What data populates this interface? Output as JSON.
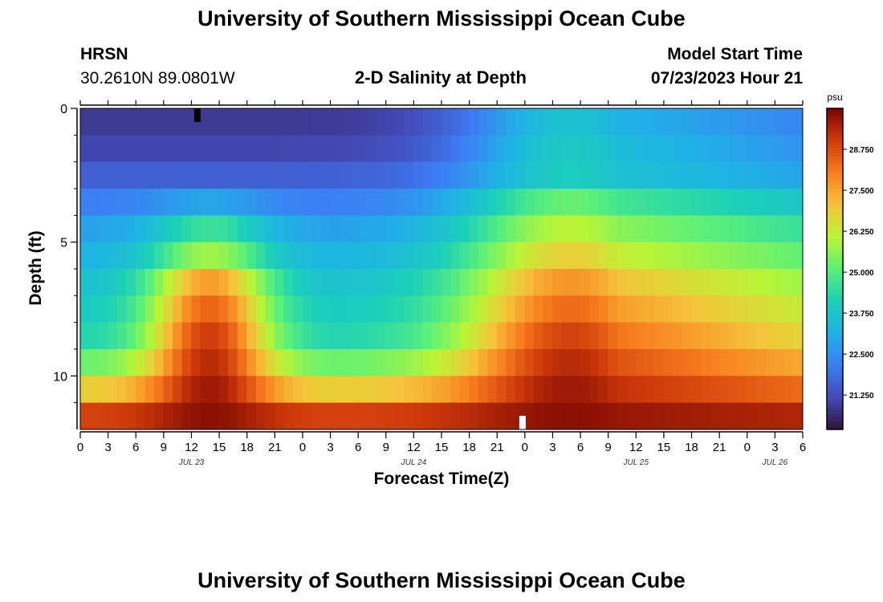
{
  "header": {
    "title": "University of Southern Mississippi Ocean Cube",
    "station": "HRSN",
    "location": "30.2610N  89.0801W",
    "plot_title": "2-D Salinity at Depth",
    "start_label": "Model Start Time",
    "start_value": "07/23/2023 Hour 21"
  },
  "footer": {
    "title": "University of Southern Mississippi Ocean Cube"
  },
  "chart_data": {
    "type": "heatmap",
    "title": "2-D Salinity at Depth",
    "xlabel": "Forecast Time(Z)",
    "ylabel": "Depth (ft)",
    "x_ticks": [
      "0",
      "3",
      "6",
      "9",
      "12",
      "15",
      "18",
      "21",
      "0",
      "3",
      "6",
      "9",
      "12",
      "15",
      "18",
      "21",
      "0",
      "3",
      "6",
      "9",
      "12",
      "15",
      "18",
      "21",
      "0",
      "3",
      "6"
    ],
    "x_tick_hours": [
      0,
      3,
      6,
      9,
      12,
      15,
      18,
      21,
      24,
      27,
      30,
      33,
      36,
      39,
      42,
      45,
      48,
      51,
      54,
      57,
      60,
      63,
      66,
      69,
      72,
      75,
      78
    ],
    "x_range_hours": [
      0,
      78
    ],
    "date_labels": [
      {
        "text": "JUL 23",
        "hour": 12
      },
      {
        "text": "JUL 24",
        "hour": 36
      },
      {
        "text": "JUL 25",
        "hour": 60
      },
      {
        "text": "JUL 26",
        "hour": 75
      }
    ],
    "y_ticks": [
      "0",
      "5",
      "10"
    ],
    "y_tick_values": [
      0,
      5,
      10
    ],
    "y_minor_ticks": [
      1,
      2,
      3,
      4,
      6,
      7,
      8,
      9,
      11
    ],
    "y_range_ft": [
      0,
      12
    ],
    "colorbar": {
      "unit": "psu",
      "ticks": [
        "21.250",
        "22.500",
        "23.750",
        "25.000",
        "26.250",
        "27.500",
        "28.750"
      ],
      "tick_values": [
        21.25,
        22.5,
        23.75,
        25.0,
        26.25,
        27.5,
        28.75
      ],
      "range": [
        20.2,
        30.0
      ]
    },
    "layer_depths_ft": [
      0,
      1,
      2,
      3,
      4,
      5,
      6,
      7,
      8,
      9,
      10,
      11,
      12
    ],
    "layers_psu": [
      {
        "t0": 20.9,
        "p1": 20.7,
        "p2": 23.6
      },
      {
        "t0": 21.1,
        "p1": 20.9,
        "p2": 23.9
      },
      {
        "t0": 21.6,
        "p1": 21.4,
        "p2": 24.0
      },
      {
        "t0": 22.2,
        "p1": 22.9,
        "p2": 25.2
      },
      {
        "t0": 22.8,
        "p1": 24.6,
        "p2": 26.1
      },
      {
        "t0": 23.2,
        "p1": 25.8,
        "p2": 26.8
      },
      {
        "t0": 23.6,
        "p1": 27.6,
        "p2": 27.7
      },
      {
        "t0": 23.9,
        "p1": 28.4,
        "p2": 28.3
      },
      {
        "t0": 24.2,
        "p1": 29.0,
        "p2": 28.9
      },
      {
        "t0": 25.2,
        "p1": 29.3,
        "p2": 29.3
      },
      {
        "t0": 26.8,
        "p1": 29.6,
        "p2": 29.6
      },
      {
        "t0": 28.9,
        "p1": 29.8,
        "p2": 29.8
      }
    ],
    "surface_series_psu": [
      {
        "hour": 0,
        "psu": 20.9
      },
      {
        "hour": 12,
        "psu": 20.7
      },
      {
        "hour": 24,
        "psu": 21.8
      },
      {
        "hour": 36,
        "psu": 22.6
      },
      {
        "hour": 48,
        "psu": 23.3
      },
      {
        "hour": 60,
        "psu": 23.6
      },
      {
        "hour": 72,
        "psu": 23.4
      },
      {
        "hour": 78,
        "psu": 22.6
      }
    ],
    "grid": false
  }
}
